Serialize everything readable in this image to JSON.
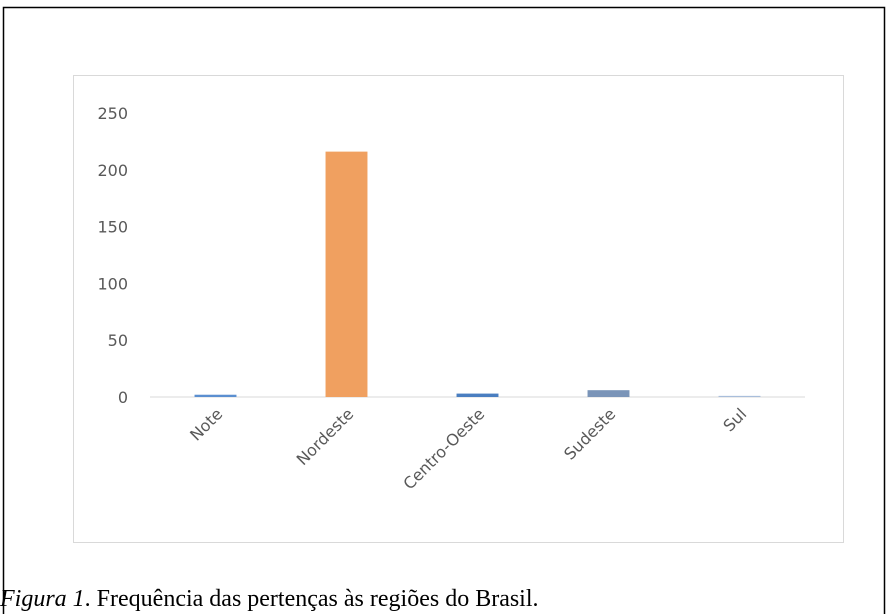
{
  "chart_data": {
    "type": "bar",
    "categories": [
      "Note",
      "Nordeste",
      "Centro-Oeste",
      "Sudeste",
      "Sul"
    ],
    "values": [
      2,
      216,
      3,
      6,
      1
    ],
    "colors": [
      "#5b8fd0",
      "#f0a060",
      "#4a7ec0",
      "#7a94b8",
      "#a9bedb"
    ],
    "ylim": [
      0,
      250
    ],
    "yticks": [
      0,
      50,
      100,
      150,
      200,
      250
    ],
    "grid": false
  },
  "caption": {
    "label": "Figura 1",
    "text": ". Frequência das pertenças às regiões do Brasil."
  }
}
